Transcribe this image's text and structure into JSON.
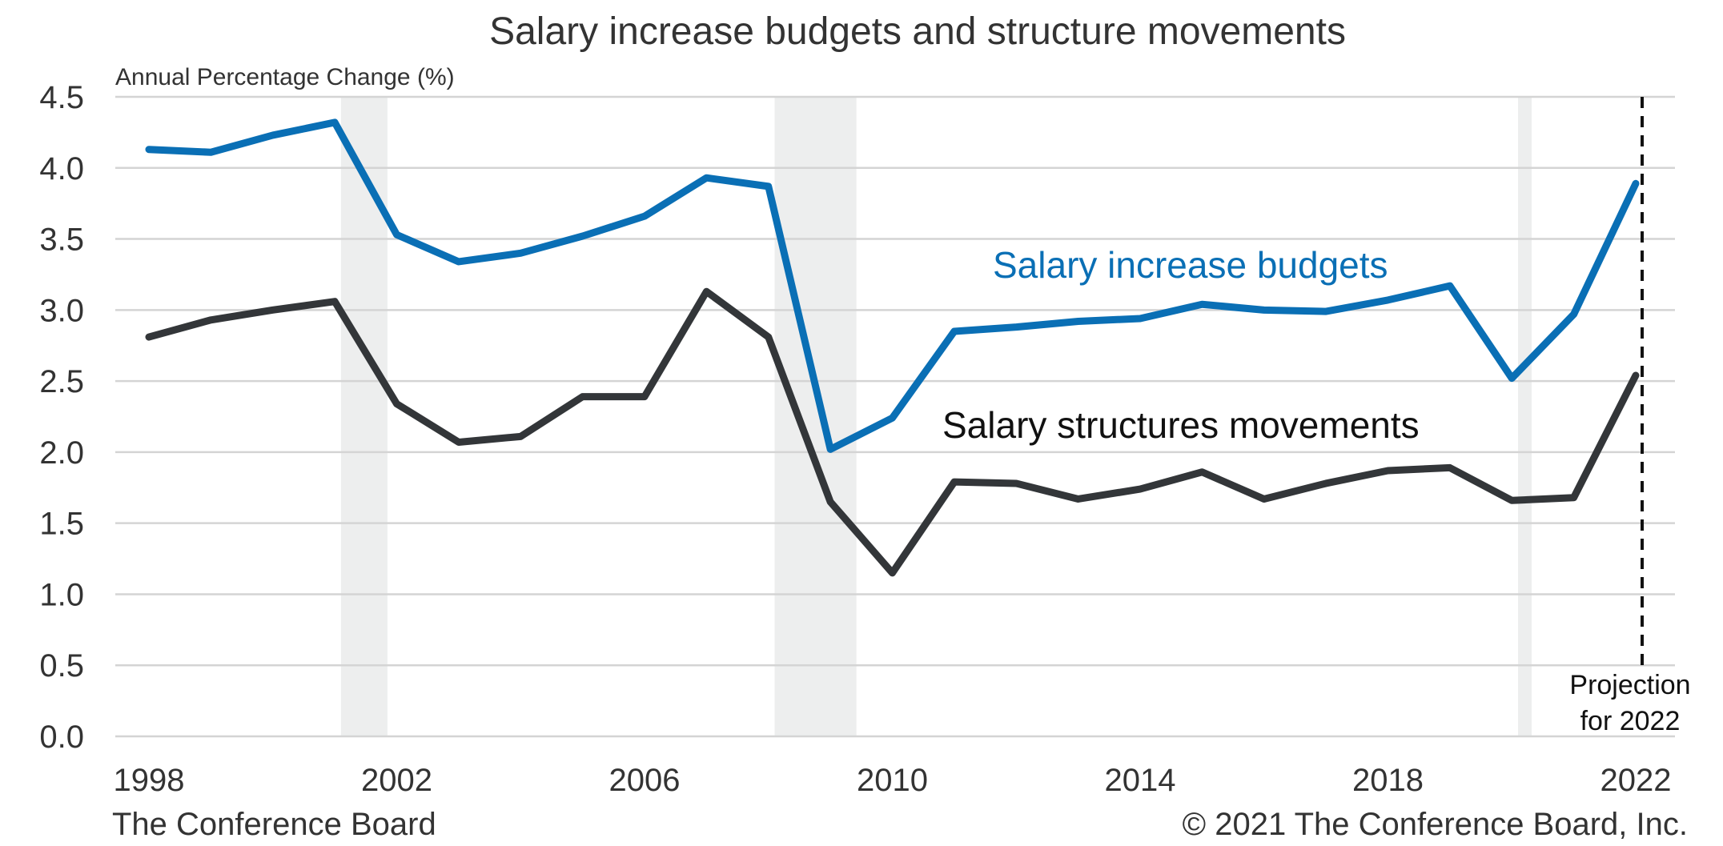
{
  "chart_data": {
    "type": "line",
    "title": "Salary increase budgets and structure movements",
    "ylabel": "Annual Percentage Change (%)",
    "xlabel": "",
    "ylim": [
      0,
      4.5
    ],
    "xlim": [
      1998,
      2022
    ],
    "x_ticks": [
      1998,
      2002,
      2006,
      2010,
      2014,
      2018,
      2022
    ],
    "y_ticks": [
      "0.0",
      "0.5",
      "1.0",
      "1.5",
      "2.0",
      "2.5",
      "3.0",
      "3.5",
      "4.0",
      "4.5"
    ],
    "grid": true,
    "x": [
      1998,
      1999,
      2000,
      2001,
      2002,
      2003,
      2004,
      2005,
      2006,
      2007,
      2008,
      2009,
      2010,
      2011,
      2012,
      2013,
      2014,
      2015,
      2016,
      2017,
      2018,
      2019,
      2020,
      2021,
      2022
    ],
    "series": [
      {
        "name": "Salary increase budgets",
        "color": "#0a6fb5",
        "values": [
          4.13,
          4.11,
          4.23,
          4.32,
          3.53,
          3.34,
          3.4,
          3.52,
          3.66,
          3.93,
          3.87,
          2.02,
          2.24,
          2.85,
          2.88,
          2.92,
          2.94,
          3.04,
          3.0,
          2.99,
          3.07,
          3.17,
          2.52,
          2.97,
          3.89
        ]
      },
      {
        "name": "Salary structures movements",
        "color": "#333639",
        "values": [
          2.81,
          2.93,
          3.0,
          3.06,
          2.34,
          2.07,
          2.11,
          2.39,
          2.39,
          3.13,
          2.81,
          1.65,
          1.15,
          1.79,
          1.78,
          1.67,
          1.74,
          1.86,
          1.67,
          1.78,
          1.87,
          1.89,
          1.66,
          1.68,
          2.54
        ]
      }
    ],
    "recessions": [
      {
        "start": 2001.1,
        "end": 2001.85
      },
      {
        "start": 2008.1,
        "end": 2009.42
      },
      {
        "start": 2020.1,
        "end": 2020.32
      }
    ],
    "projection": {
      "year": 2022,
      "label_line1": "Projection",
      "label_line2": "for 2022"
    },
    "source_left": "The Conference Board",
    "source_right": "© 2021 The Conference Board, Inc."
  }
}
